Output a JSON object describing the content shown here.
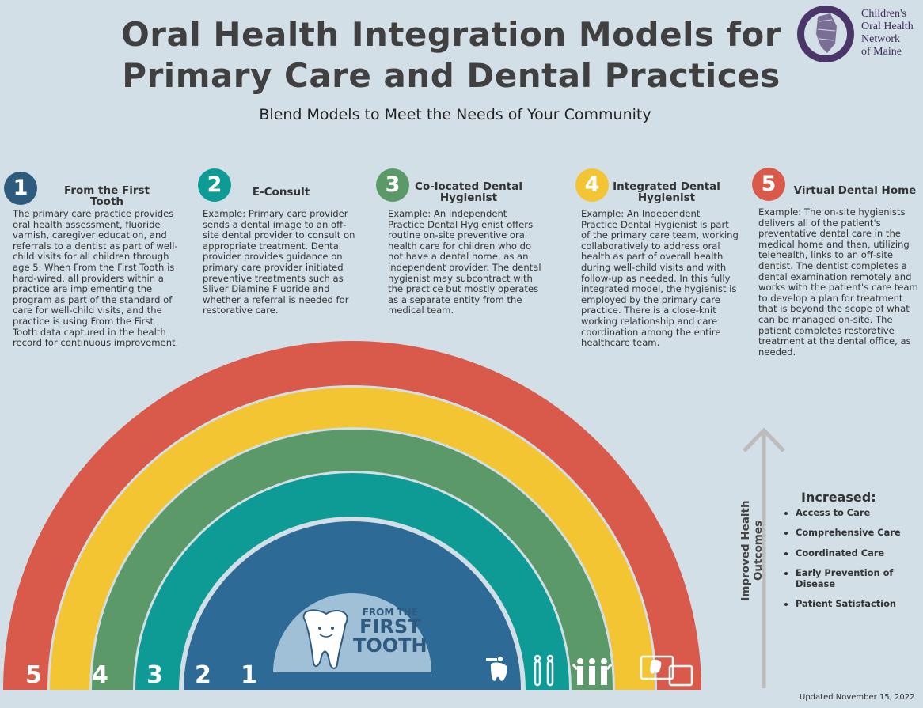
{
  "header": {
    "title_line1": "Oral Health Integration Models for",
    "title_line2": "Primary Care and Dental Practices",
    "subtitle": "Blend Models to Meet the Needs of Your Community"
  },
  "logo": {
    "line1": "Children's",
    "line2": "Oral Health",
    "line3": "Network",
    "line4": "of Maine"
  },
  "models": [
    {
      "number": "1",
      "title": "From the First Tooth",
      "color": "#2d5b7e",
      "desc": "The primary care practice provides oral health assessment, fluoride varnish, caregiver education, and referrals to a dentist as part of well-child visits for all children through age 5. When From the First Tooth is hard-wired, all providers within a practice are implementing the program as part of the standard of care for well-child visits, and the practice is using From the First Tooth data captured in the health record for continuous improvement."
    },
    {
      "number": "2",
      "title": "E-Consult",
      "color": "#0e9b96",
      "desc": "Example: Primary care provider sends a dental image to an off-site dental provider to consult on appropriate treatment. Dental provider provides guidance on primary care provider initiated preventive treatments such as Sliver Diamine Fluoride and whether a referral is needed for restorative care."
    },
    {
      "number": "3",
      "title": "Co-located Dental Hygienist",
      "color": "#5b9a68",
      "desc": "Example: An Independent Practice Dental Hygienist offers routine on-site preventive oral health care for children who do not have a dental home, as an independent provider. The dental hygienist may subcontract with the practice but mostly operates as a separate entity from the medical team."
    },
    {
      "number": "4",
      "title": "Integrated Dental Hygienist",
      "color": "#f3c533",
      "desc": "Example: An Independent Practice Dental Hygienist is part of the primary care team, working collaboratively to address oral health as part of overall health during well-child visits and with follow-up as needed. In this fully integrated model, the hygienist is employed by the primary care practice. There is a close-knit working relationship and care coordination among the entire healthcare team."
    },
    {
      "number": "5",
      "title": "Virtual Dental Home",
      "color": "#d95a4b",
      "desc": "Example: The on-site hygienists delivers all of the patient's preventative dental care in the medical home and then, utilizing telehealth,  links to an off-site dentist. The dentist completes a dental examination remotely and works with the patient's care team to develop a plan for treatment that is beyond the scope of what can be managed on-site. The patient completes restorative treatment at the dental office, as needed."
    }
  ],
  "arc_numbers": [
    "5",
    "4",
    "3",
    "2",
    "1"
  ],
  "program_logo": {
    "line1": "FROM THE",
    "line2": "FIRST",
    "line3": "TOOTH"
  },
  "outcomes": {
    "axis_label": "Improved Health Outcomes",
    "heading": "Increased:",
    "items": [
      "Access to Care",
      "Comprehensive Care",
      "Coordinated Care",
      "Early Prevention of Disease",
      "Patient Satisfaction"
    ]
  },
  "footer": {
    "updated": "Updated November 15, 2022"
  }
}
